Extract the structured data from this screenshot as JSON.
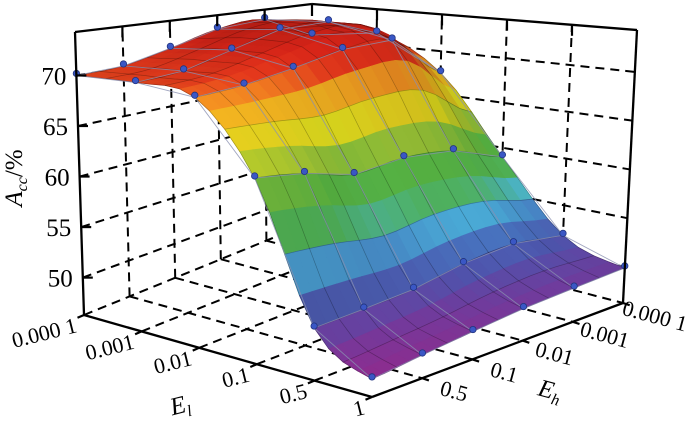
{
  "figure": {
    "background": "#ffffff"
  },
  "chart_data": {
    "type": "surface3d",
    "title": "",
    "z_axis": {
      "label": {
        "base": "A",
        "sub": "cc",
        "suffix": "/%"
      },
      "tick_labels": [
        "50",
        "55",
        "60",
        "65",
        "70"
      ],
      "tick_values": [
        50,
        55,
        60,
        65,
        70
      ],
      "range": [
        46.3,
        74.3
      ]
    },
    "el_axis": {
      "label": {
        "base": "E",
        "sub": "l"
      },
      "tick_labels": [
        "0.000 1",
        "0.001",
        "0.01",
        "0.1",
        "0.5",
        "1"
      ],
      "tick_values": [
        0.0001,
        0.001,
        0.01,
        0.1,
        0.5,
        1
      ]
    },
    "eh_axis": {
      "label": {
        "base": "E",
        "sub": "h"
      },
      "tick_labels": [
        "0.5",
        "0.1",
        "0.01",
        "0.001",
        "0.000 1"
      ],
      "tick_values": [
        0.5,
        0.1,
        0.01,
        0.001,
        0.0001
      ],
      "shared_corner_tick": "1"
    },
    "surface": {
      "el_values": [
        0.0001,
        0.001,
        0.01,
        0.1,
        0.5,
        1
      ],
      "eh_values": [
        1,
        0.5,
        0.1,
        0.01,
        0.001,
        0.0001
      ],
      "acc_percent": [
        [
          70.0,
          70.2,
          71.3,
          72.7,
          73.1,
          70.3
        ],
        [
          70.0,
          70.4,
          71.8,
          73.3,
          73.5,
          71.4
        ],
        [
          69.3,
          69.7,
          70.6,
          71.8,
          72.1,
          67.5
        ],
        [
          62.8,
          62.2,
          61.0,
          61.5,
          61.0,
          59.0
        ],
        [
          50.8,
          51.0,
          51.3,
          52.2,
          52.6,
          51.8
        ],
        [
          47.8,
          48.3,
          48.8,
          49.3,
          49.6,
          49.9
        ]
      ]
    },
    "colormap": [
      [
        0.0,
        "#8C2D90"
      ],
      [
        0.07,
        "#6E3C9D"
      ],
      [
        0.14,
        "#4E54AC"
      ],
      [
        0.22,
        "#4979C6"
      ],
      [
        0.3,
        "#4FC0E8"
      ],
      [
        0.38,
        "#55BE5E"
      ],
      [
        0.48,
        "#5CBE45"
      ],
      [
        0.58,
        "#A2CC38"
      ],
      [
        0.66,
        "#E9E51F"
      ],
      [
        0.74,
        "#F6C120"
      ],
      [
        0.8,
        "#F69A22"
      ],
      [
        0.86,
        "#E63A1C"
      ],
      [
        0.93,
        "#D62418"
      ],
      [
        1.0,
        "#C01F15"
      ]
    ],
    "color_domain": [
      48,
      73.8
    ],
    "scatter": {
      "color": "#3A57C5",
      "edge": "#22347E"
    },
    "wireframe_color": "#8A90B0",
    "grid": {
      "color": "#000000",
      "dash": "9 6"
    },
    "legend": {
      "visible": false
    }
  }
}
